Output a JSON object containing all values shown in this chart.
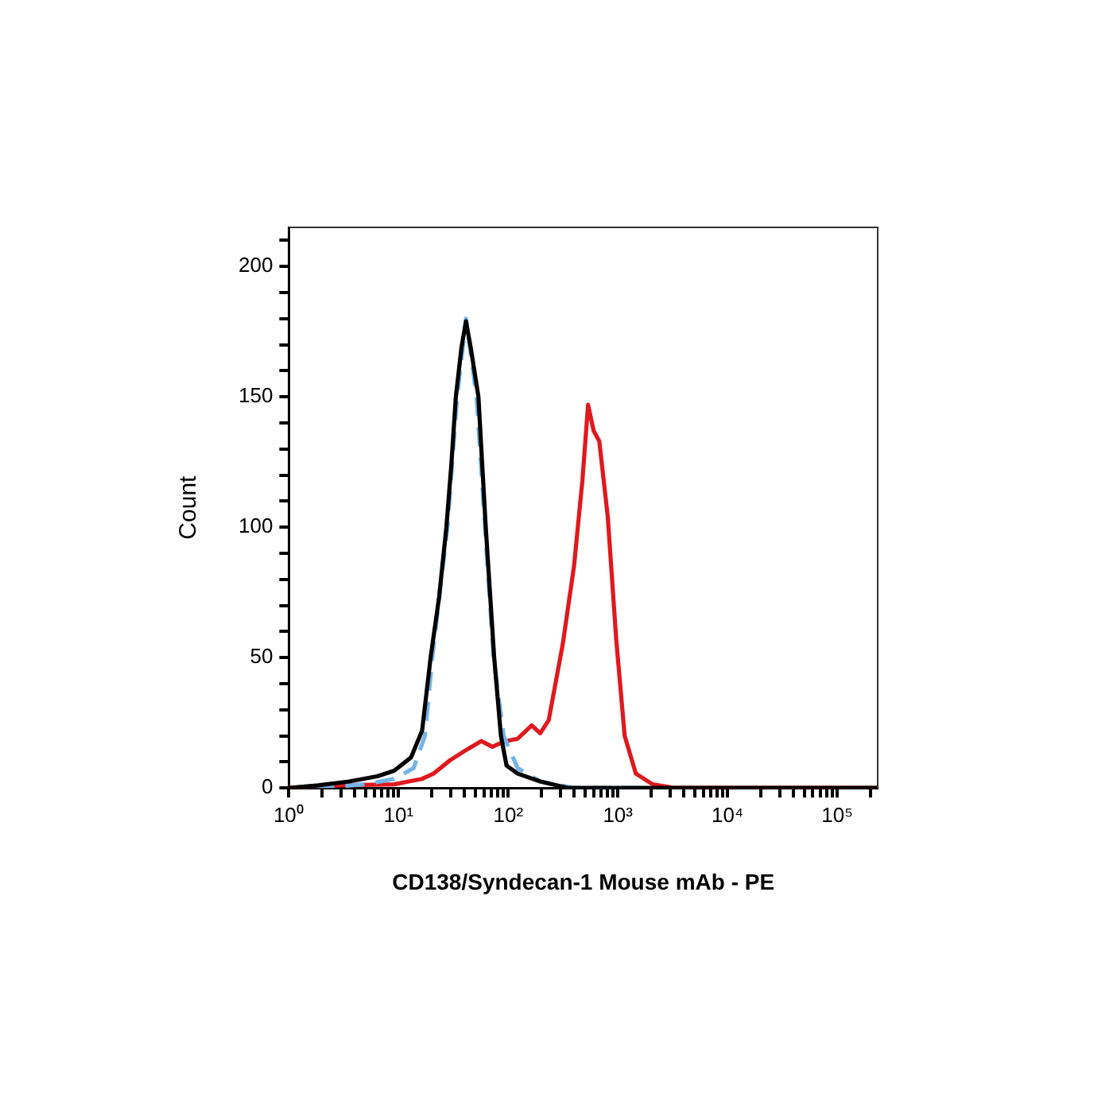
{
  "chart_data": {
    "type": "line",
    "xlabel": "CD138/Syndecan-1 Mouse mAb - PE",
    "ylabel": "Count",
    "log": "x",
    "grid": false,
    "legend": false,
    "marker": "none",
    "xlim": [
      1,
      234000
    ],
    "ylim": [
      0,
      215
    ],
    "xticks": [
      {
        "value": 1,
        "label": "10⁰"
      },
      {
        "value": 2,
        "label": null
      },
      {
        "value": 3,
        "label": null
      },
      {
        "value": 4,
        "label": null
      },
      {
        "value": 5,
        "label": null
      },
      {
        "value": 6,
        "label": null
      },
      {
        "value": 7,
        "label": null
      },
      {
        "value": 8,
        "label": null
      },
      {
        "value": 9,
        "label": null
      },
      {
        "value": 10,
        "label": "10¹"
      },
      {
        "value": 20,
        "label": null
      },
      {
        "value": 30,
        "label": null
      },
      {
        "value": 40,
        "label": null
      },
      {
        "value": 50,
        "label": null
      },
      {
        "value": 60,
        "label": null
      },
      {
        "value": 70,
        "label": null
      },
      {
        "value": 80,
        "label": null
      },
      {
        "value": 90,
        "label": null
      },
      {
        "value": 100,
        "label": "10²"
      },
      {
        "value": 200,
        "label": null
      },
      {
        "value": 300,
        "label": null
      },
      {
        "value": 400,
        "label": null
      },
      {
        "value": 500,
        "label": null
      },
      {
        "value": 600,
        "label": null
      },
      {
        "value": 700,
        "label": null
      },
      {
        "value": 800,
        "label": null
      },
      {
        "value": 900,
        "label": null
      },
      {
        "value": 1000,
        "label": "10³"
      },
      {
        "value": 2000,
        "label": null
      },
      {
        "value": 3000,
        "label": null
      },
      {
        "value": 4000,
        "label": null
      },
      {
        "value": 5000,
        "label": null
      },
      {
        "value": 6000,
        "label": null
      },
      {
        "value": 7000,
        "label": null
      },
      {
        "value": 8000,
        "label": null
      },
      {
        "value": 9000,
        "label": null
      },
      {
        "value": 10000,
        "label": "10⁴"
      },
      {
        "value": 20000,
        "label": null
      },
      {
        "value": 30000,
        "label": null
      },
      {
        "value": 40000,
        "label": null
      },
      {
        "value": 50000,
        "label": null
      },
      {
        "value": 60000,
        "label": null
      },
      {
        "value": 70000,
        "label": null
      },
      {
        "value": 80000,
        "label": null
      },
      {
        "value": 90000,
        "label": null
      },
      {
        "value": 100000,
        "label": "10⁵"
      },
      {
        "value": 200000,
        "label": null
      }
    ],
    "yticks": [
      0,
      {
        "value": 10,
        "label": null
      },
      {
        "value": 20,
        "label": null
      },
      {
        "value": 30,
        "label": null
      },
      {
        "value": 40,
        "label": null
      },
      50,
      {
        "value": 60,
        "label": null
      },
      {
        "value": 70,
        "label": null
      },
      {
        "value": 80,
        "label": null
      },
      {
        "value": 90,
        "label": null
      },
      100,
      {
        "value": 110,
        "label": null
      },
      {
        "value": 120,
        "label": null
      },
      {
        "value": 130,
        "label": null
      },
      {
        "value": 140,
        "label": null
      },
      150,
      {
        "value": 160,
        "label": null
      },
      {
        "value": 170,
        "label": null
      },
      {
        "value": 180,
        "label": null
      },
      {
        "value": 190,
        "label": null
      },
      200,
      {
        "value": 210,
        "label": null
      }
    ],
    "series": [
      {
        "color": "#000000",
        "line_style": "solid",
        "x": [
          1,
          1.85,
          3.54,
          6.38,
          9.1,
          13,
          16.4,
          19.6,
          23.4,
          27.3,
          30.3,
          33.3,
          37.5,
          41.2,
          45.9,
          53.5,
          62.4,
          74.5,
          85.8,
          96.6,
          122,
          196,
          354,
          234000
        ],
        "values": [
          0,
          1,
          2.5,
          4.5,
          6.6,
          11.7,
          22,
          50,
          73,
          100,
          124,
          150,
          169,
          179,
          168,
          150,
          100,
          50,
          20,
          8.6,
          5.5,
          2.5,
          0,
          0
        ]
      },
      {
        "color": "#74b4e8",
        "line_style": "dashed",
        "x": [
          1.74,
          5,
          9.1,
          13.7,
          17.4,
          20.3,
          27.9,
          34.2,
          41.2,
          51.5,
          61.5,
          73.5,
          90.8,
          122,
          196,
          398,
          1640
        ],
        "values": [
          0,
          1.4,
          3.5,
          7.6,
          20,
          50,
          100,
          150,
          180,
          150,
          100,
          50,
          20,
          7.6,
          2.5,
          0,
          0
        ]
      },
      {
        "color": "#e0191e",
        "line_style": "solid",
        "x": [
          1,
          2.79,
          9.1,
          16.4,
          20.8,
          29.6,
          42.2,
          56.7,
          71.8,
          91,
          122,
          164,
          196,
          234,
          314,
          398,
          475,
          535,
          601,
          677,
          809,
          966,
          1153,
          1460,
          2080,
          3330,
          234000
        ],
        "values": [
          0,
          1,
          1.4,
          3.5,
          5.5,
          10.7,
          14.8,
          18,
          15.8,
          17.8,
          18.9,
          24,
          21,
          26,
          55,
          85,
          118,
          147,
          137,
          133,
          104,
          57,
          20,
          5.5,
          1.4,
          0,
          0
        ]
      }
    ]
  }
}
